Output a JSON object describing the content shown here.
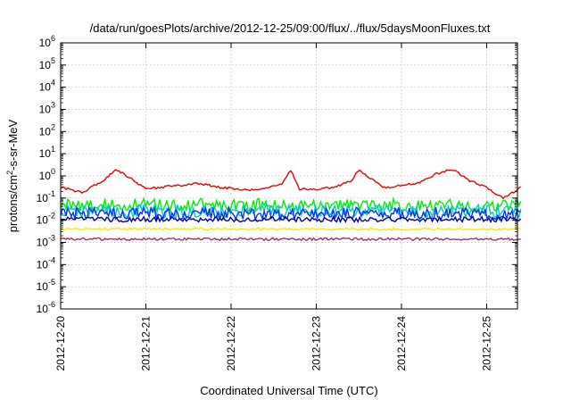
{
  "chart_data": {
    "type": "line",
    "title": "/data/run/goesPlots/archive/2012-12-25/09:00/flux/../flux/5daysMoonFluxes.txt",
    "xlabel": "Coordinated Universal Time (UTC)",
    "ylabel": "protons/cm²-s-sr-MeV",
    "ylabel_parts": [
      "protons/cm",
      "2",
      "-s-sr-MeV"
    ],
    "yscale": "log",
    "ylim": [
      1e-06,
      1000000.0
    ],
    "xlim": [
      0,
      5.4
    ],
    "grid": true,
    "legend": "none",
    "x_ticks": [
      {
        "x": 0,
        "label": "2012-12-20"
      },
      {
        "x": 1,
        "label": "2012-12-21"
      },
      {
        "x": 2,
        "label": "2012-12-22"
      },
      {
        "x": 3,
        "label": "2012-12-23"
      },
      {
        "x": 4,
        "label": "2012-12-24"
      },
      {
        "x": 5,
        "label": "2012-12-25"
      }
    ],
    "y_ticks": [
      {
        "exp": 6,
        "label": "10^6"
      },
      {
        "exp": 5,
        "label": "10^5"
      },
      {
        "exp": 4,
        "label": "10^4"
      },
      {
        "exp": 3,
        "label": "10^3"
      },
      {
        "exp": 2,
        "label": "10^2"
      },
      {
        "exp": 1,
        "label": "10^1"
      },
      {
        "exp": 0,
        "label": "10^0"
      },
      {
        "exp": -1,
        "label": "10^-1"
      },
      {
        "exp": -2,
        "label": "10^-2"
      },
      {
        "exp": -3,
        "label": "10^-3"
      },
      {
        "exp": -4,
        "label": "10^-4"
      },
      {
        "exp": -5,
        "label": "10^-5"
      },
      {
        "exp": -6,
        "label": "10^-6"
      }
    ],
    "series": [
      {
        "color": "#ee0000",
        "x": [
          0,
          0.25,
          0.5,
          0.65,
          0.8,
          1.0,
          1.3,
          1.6,
          1.9,
          2.2,
          2.4,
          2.6,
          2.7,
          2.8,
          3.0,
          3.2,
          3.4,
          3.5,
          3.65,
          3.8,
          4.0,
          4.2,
          4.4,
          4.6,
          4.8,
          5.0,
          5.2,
          5.4
        ],
        "values": [
          0.3,
          0.18,
          0.6,
          2.0,
          0.9,
          0.25,
          0.35,
          0.45,
          0.3,
          0.22,
          0.28,
          0.45,
          1.8,
          0.25,
          0.25,
          0.3,
          0.55,
          1.8,
          0.7,
          0.3,
          0.35,
          0.5,
          1.2,
          2.0,
          0.6,
          0.3,
          0.1,
          0.3
        ],
        "noise": 0.05
      },
      {
        "color": "#00ee00",
        "x": [
          0,
          5.4
        ],
        "values": [
          0.05,
          0.05
        ],
        "noise": 0.28
      },
      {
        "color": "#00cccc",
        "x": [
          0,
          5.4
        ],
        "values": [
          0.025,
          0.025
        ],
        "noise": 0.3
      },
      {
        "color": "#0033ff",
        "x": [
          0,
          5.4
        ],
        "values": [
          0.02,
          0.02
        ],
        "noise": 0.28
      },
      {
        "color": "#0000aa",
        "x": [
          0,
          5.4
        ],
        "values": [
          0.011,
          0.011
        ],
        "noise": 0.12
      },
      {
        "color": "#eeee00",
        "x": [
          0,
          5.4
        ],
        "values": [
          0.004,
          0.004
        ],
        "noise": 0.05
      },
      {
        "color": "#993366",
        "x": [
          0,
          5.4
        ],
        "values": [
          0.0014,
          0.0014
        ],
        "noise": 0.06
      }
    ]
  }
}
